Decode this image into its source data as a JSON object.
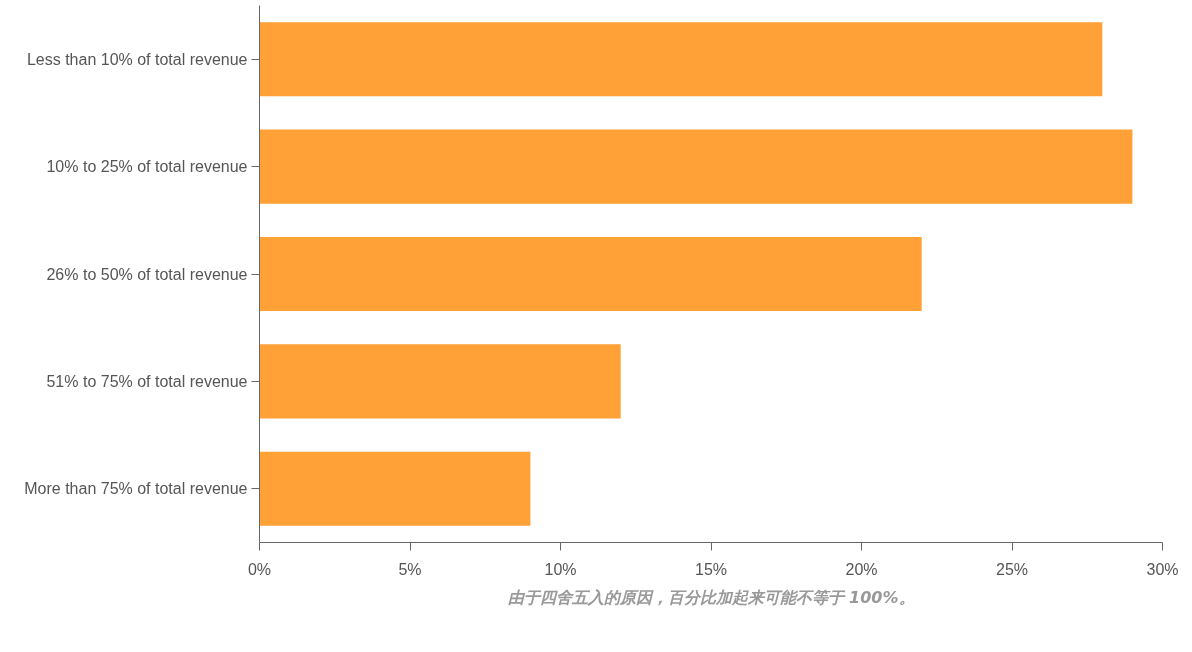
{
  "chart_data": {
    "type": "bar",
    "orientation": "horizontal",
    "categories": [
      "Less than 10% of total revenue",
      "10% to 25% of total revenue",
      "26% to 50% of total revenue",
      "51% to 75% of total revenue",
      "More than 75% of total revenue"
    ],
    "values": [
      28,
      29,
      22,
      12,
      9
    ],
    "color": "#ffa136",
    "xlim": [
      0,
      30
    ],
    "xticks": [
      {
        "value": 0,
        "label": "0%"
      },
      {
        "value": 5,
        "label": "5%"
      },
      {
        "value": 10,
        "label": "10%"
      },
      {
        "value": 15,
        "label": "15%"
      },
      {
        "value": 20,
        "label": "20%"
      },
      {
        "value": 25,
        "label": "25%"
      },
      {
        "value": 30,
        "label": "30%"
      }
    ],
    "grid": false,
    "annotations": [
      "由于四舍五入的原因，百分比加起来可能不等于 100%。"
    ]
  }
}
